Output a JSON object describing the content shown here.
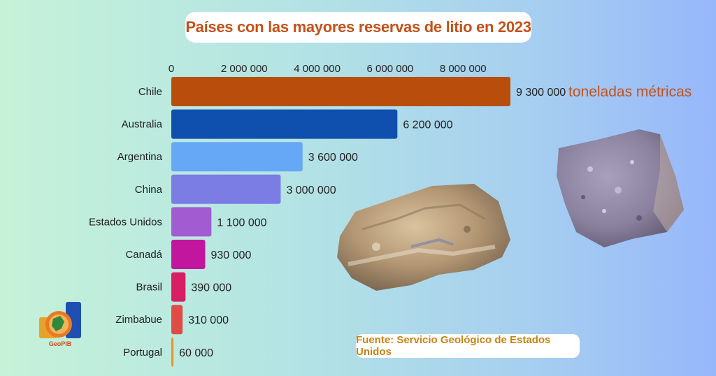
{
  "title": "Países con las mayores reservas de litio en 2023",
  "unit_label": "toneladas métricas",
  "source": "Fuente: Servicio Geológico de Estados Unidos",
  "logo_text": "GeoPIB",
  "chart_data": {
    "type": "bar",
    "orientation": "horizontal",
    "title": "Países con las mayores reservas de litio en 2023",
    "categories": [
      "Chile",
      "Australia",
      "Argentina",
      "China",
      "Estados Unidos",
      "Canadá",
      "Brasil",
      "Zimbabue",
      "Portugal"
    ],
    "values": [
      9300000,
      6200000,
      3600000,
      3000000,
      1100000,
      930000,
      390000,
      310000,
      60000
    ],
    "value_labels": [
      "9 300 000",
      "6 200 000",
      "3 600 000",
      "3 000 000",
      "1 100 000",
      "930 000",
      "390 000",
      "310 000",
      "60 000"
    ],
    "colors": [
      "#b94e0c",
      "#0f4fad",
      "#66a8f6",
      "#7b7de4",
      "#a35bd1",
      "#c2169e",
      "#d81f63",
      "#de4c45",
      "#e6962c"
    ],
    "x_ticks": [
      0,
      2000000,
      4000000,
      6000000,
      8000000
    ],
    "x_tick_labels": [
      "0",
      "2 000 000",
      "4 000 000",
      "6 000 000",
      "8 000 000"
    ],
    "xlim": [
      0,
      9300000
    ],
    "axis_position": "top",
    "grid": false,
    "legend": "none",
    "units": "toneladas métricas"
  }
}
